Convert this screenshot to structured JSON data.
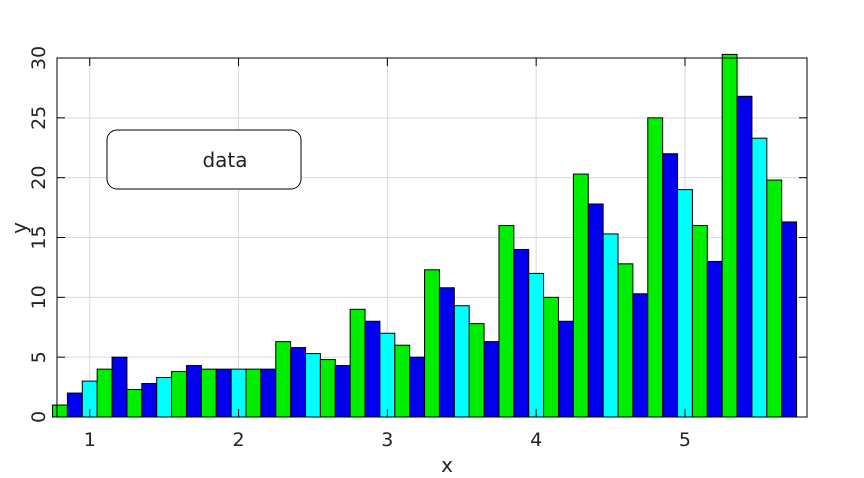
{
  "chart_data": {
    "type": "bar",
    "title": "",
    "xlabel": "x",
    "ylabel": "y",
    "xlim": [
      0.78,
      5.82
    ],
    "ylim": [
      0,
      30
    ],
    "xticks": [
      1,
      2,
      3,
      4,
      5
    ],
    "yticks": [
      0,
      5,
      10,
      15,
      20,
      25,
      30
    ],
    "grid": true,
    "legend": {
      "position": "top-left",
      "entries": [
        "data"
      ]
    },
    "group_width": 0.5,
    "bar_colors": [
      "#00ee00",
      "#0000ee",
      "#00ffff",
      "#00ee00",
      "#0000ee"
    ],
    "groups": [
      {
        "values": [
          1,
          2,
          3,
          4,
          5
        ]
      },
      {
        "values": [
          2.3,
          2.8,
          3.3,
          3.8,
          4.3
        ]
      },
      {
        "values": [
          4,
          4,
          4,
          4,
          4
        ]
      },
      {
        "values": [
          6.3,
          5.8,
          5.3,
          4.8,
          4.3
        ]
      },
      {
        "values": [
          9,
          8,
          7,
          6,
          5
        ]
      },
      {
        "values": [
          12.3,
          10.8,
          9.3,
          7.8,
          6.3
        ]
      },
      {
        "values": [
          16,
          14,
          12,
          10,
          8
        ]
      },
      {
        "values": [
          20.3,
          17.8,
          15.3,
          12.8,
          10.3
        ]
      },
      {
        "values": [
          25,
          22,
          19,
          16,
          13
        ]
      },
      {
        "values": [
          30.3,
          26.8,
          23.3,
          19.8,
          16.3
        ]
      }
    ],
    "group_x": [
      1.0,
      1.5,
      2.0,
      2.5,
      3.0,
      3.5,
      4.0,
      4.5,
      5.0,
      5.5
    ]
  }
}
